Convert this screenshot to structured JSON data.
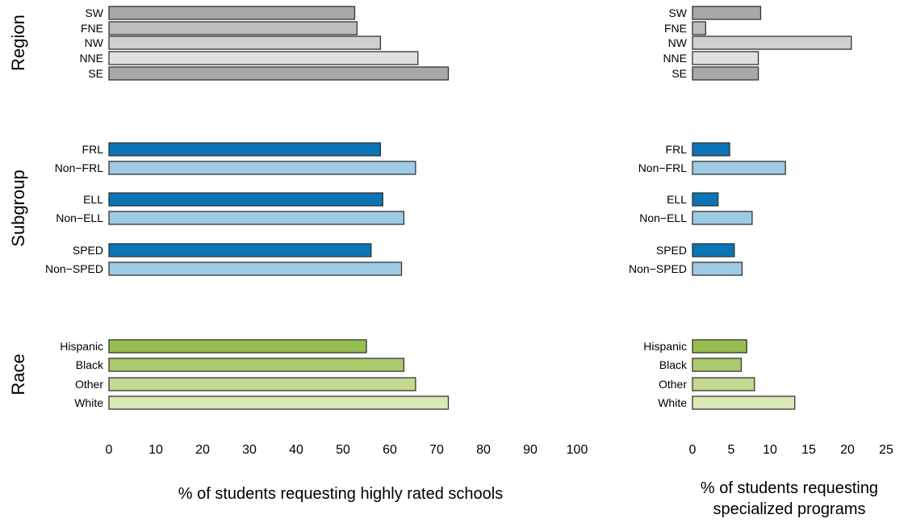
{
  "groups": [
    {
      "name": "Region",
      "rows": [
        "SW",
        "FNE",
        "NW",
        "NNE",
        "SE"
      ]
    },
    {
      "name": "Subgroup",
      "rows": [
        "FRL",
        "Non−FRL",
        "ELL",
        "Non−ELL",
        "SPED",
        "Non−SPED"
      ]
    },
    {
      "name": "Race",
      "rows": [
        "Hispanic",
        "Black",
        "Other",
        "White"
      ]
    }
  ],
  "chart_data": [
    {
      "type": "bar",
      "orientation": "horizontal",
      "xlabel": "% of students requesting highly rated schools",
      "xlim": [
        0,
        100
      ],
      "xticks": [
        0,
        10,
        20,
        30,
        40,
        50,
        60,
        70,
        80,
        90,
        100
      ],
      "grid": false,
      "categories": [
        "SW",
        "FNE",
        "NW",
        "NNE",
        "SE",
        "FRL",
        "Non−FRL",
        "ELL",
        "Non−ELL",
        "SPED",
        "Non−SPED",
        "Hispanic",
        "Black",
        "Other",
        "White"
      ],
      "values": [
        52.5,
        53,
        58,
        66,
        72.5,
        58,
        65.5,
        58.5,
        63,
        56,
        62.5,
        55,
        63,
        65.5,
        72.5
      ]
    },
    {
      "type": "bar",
      "orientation": "horizontal",
      "xlabel": "% of students requesting specialized programs",
      "xlim": [
        0,
        25
      ],
      "xticks": [
        0,
        5,
        10,
        15,
        20,
        25
      ],
      "grid": false,
      "categories": [
        "SW",
        "FNE",
        "NW",
        "NNE",
        "SE",
        "FRL",
        "Non−FRL",
        "ELL",
        "Non−ELL",
        "SPED",
        "Non−SPED",
        "Hispanic",
        "Black",
        "Other",
        "White"
      ],
      "values": [
        8.8,
        1.7,
        20.5,
        8.5,
        8.5,
        4.8,
        12,
        3.3,
        7.7,
        5.4,
        6.4,
        7,
        6.3,
        8,
        13.2
      ]
    }
  ],
  "colors": {
    "SW": "#a8a8a8",
    "FNE": "#bdbdbd",
    "NW": "#cfcfcf",
    "NNE": "#e0e0e0",
    "SE": "#a8a8a8",
    "FRL": "#0a74b6",
    "Non−FRL": "#9ecae4",
    "ELL": "#0a74b6",
    "Non−ELL": "#9ecae4",
    "SPED": "#0a74b6",
    "Non−SPED": "#9ecae4",
    "Hispanic": "#96bd50",
    "Black": "#acca6d",
    "Other": "#c3d991",
    "White": "#d9e8b5",
    "outline": "#333333"
  }
}
